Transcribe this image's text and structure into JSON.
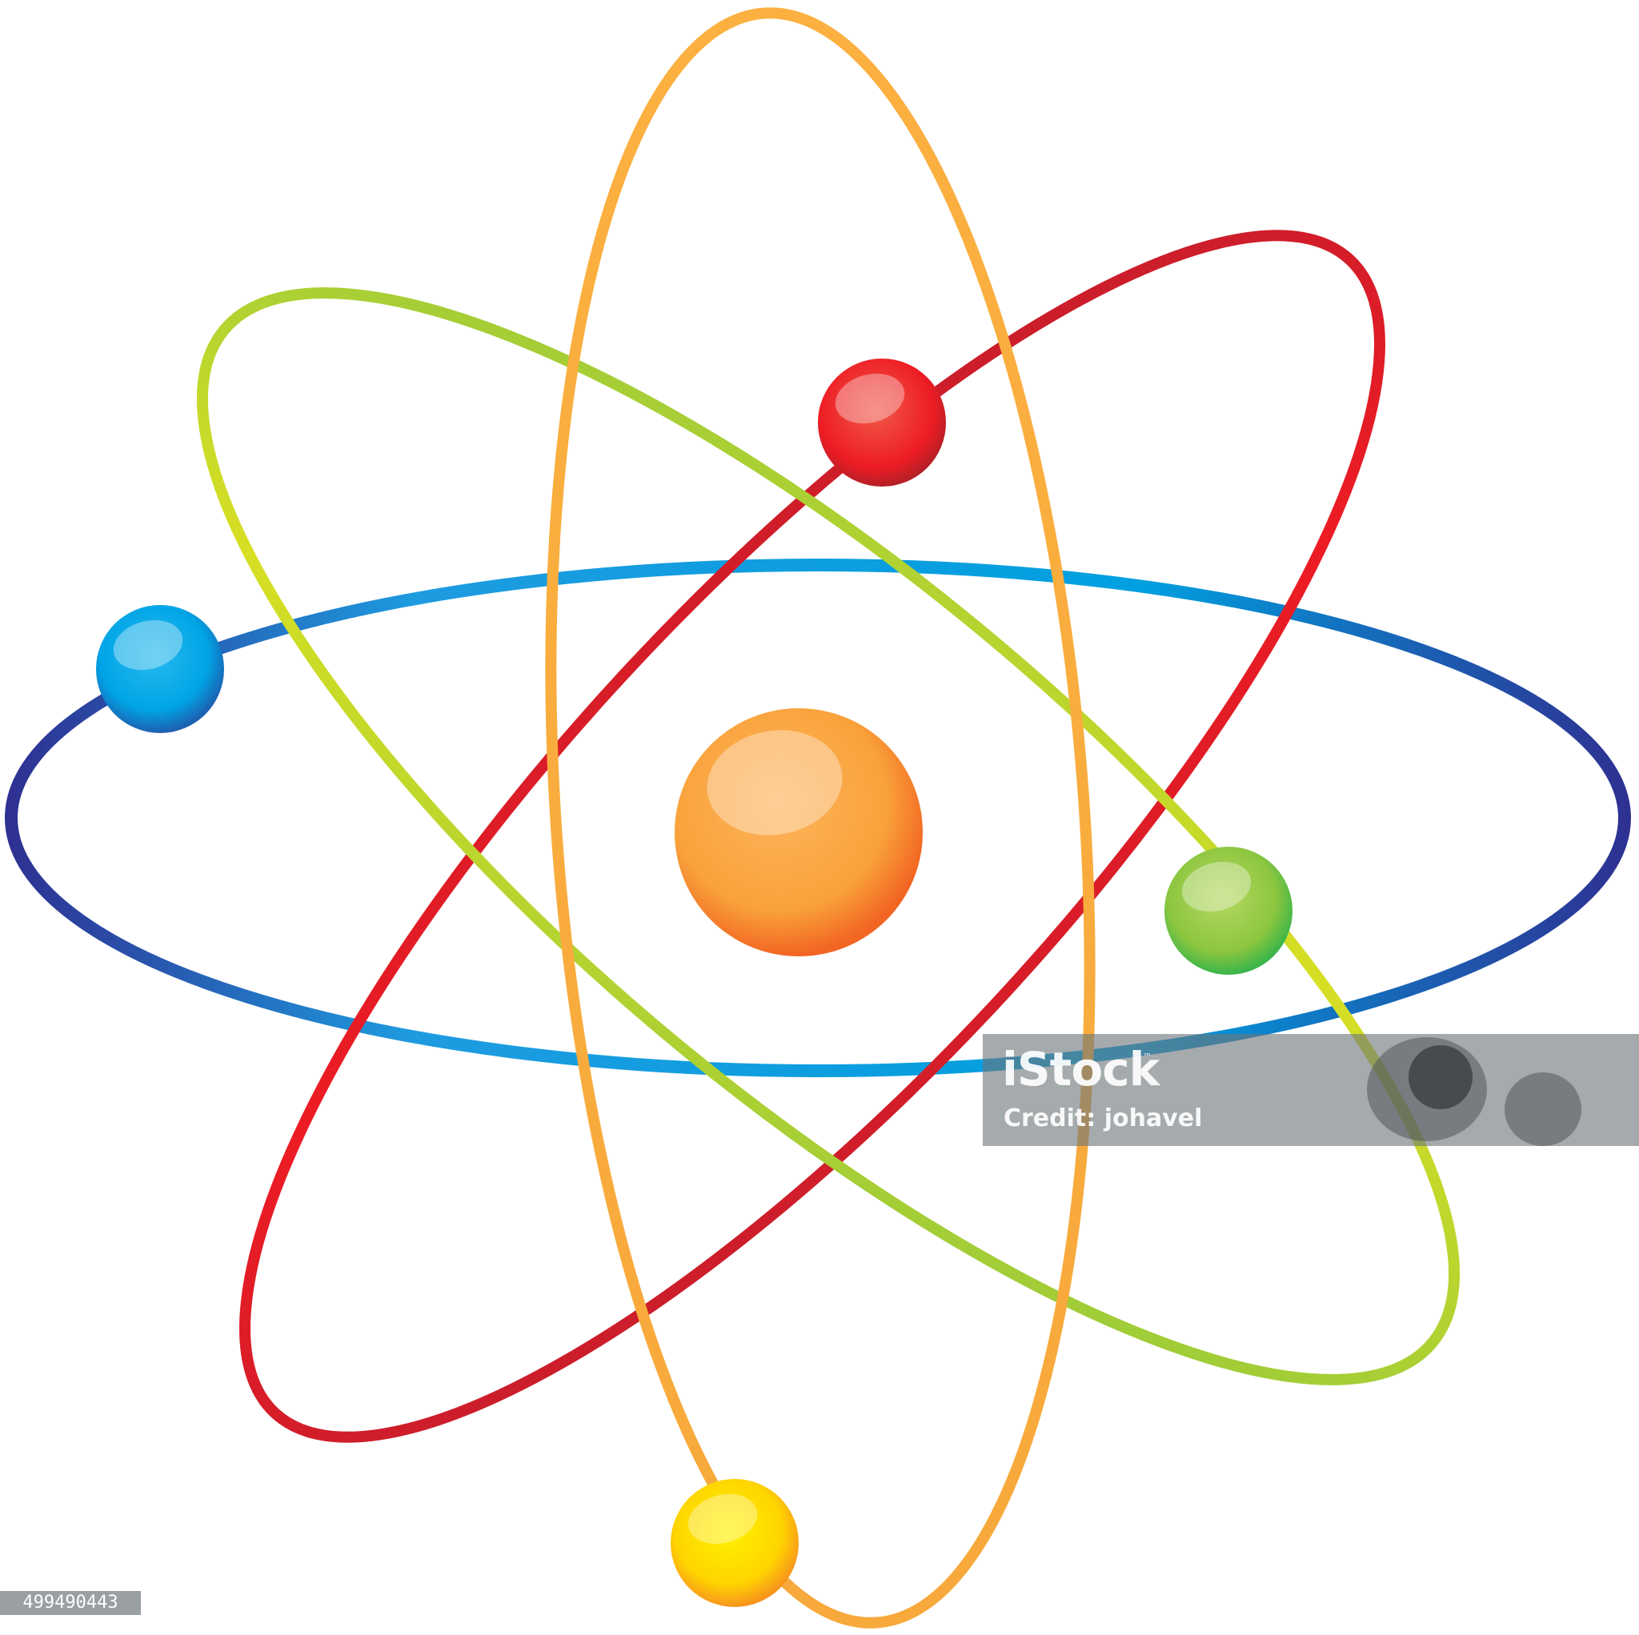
{
  "image": {
    "subject": "atom-model",
    "nucleus": {
      "color": "#f7941d"
    },
    "orbits": [
      {
        "name": "blue-orbit",
        "color": "#1e8fd6"
      },
      {
        "name": "yellow-orbit",
        "color": "#fbb040"
      },
      {
        "name": "red-orbit",
        "color": "#e31e2d"
      },
      {
        "name": "green-orbit",
        "color": "#8cc63f"
      }
    ],
    "electrons": [
      {
        "name": "red-electron",
        "color": "#ed1c24"
      },
      {
        "name": "blue-electron",
        "color": "#1b9ad6"
      },
      {
        "name": "green-electron",
        "color": "#8dc63f"
      },
      {
        "name": "yellow-electron",
        "color": "#fcd116"
      }
    ]
  },
  "watermark": {
    "brand": "iStock",
    "trademark": "™",
    "credit": "Credit: johavel"
  },
  "image_id": "499490443"
}
